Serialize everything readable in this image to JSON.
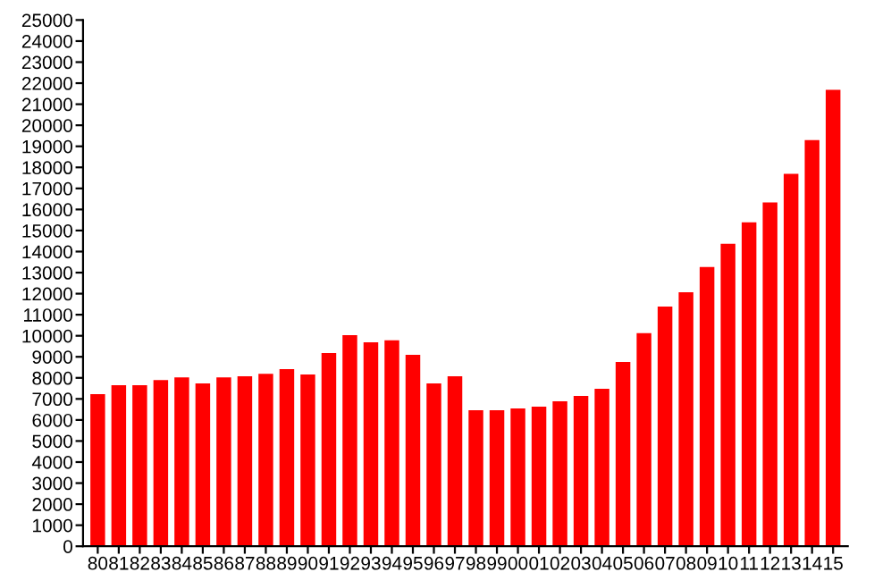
{
  "chart_data": {
    "type": "bar",
    "categories": [
      "80",
      "81",
      "82",
      "83",
      "84",
      "85",
      "86",
      "87",
      "88",
      "89",
      "90",
      "91",
      "92",
      "93",
      "94",
      "95",
      "96",
      "97",
      "98",
      "99",
      "00",
      "01",
      "02",
      "03",
      "04",
      "05",
      "06",
      "07",
      "08",
      "09",
      "10",
      "11",
      "12",
      "13",
      "14",
      "15"
    ],
    "values": [
      7230,
      7650,
      7650,
      7900,
      8020,
      7740,
      8020,
      8080,
      8190,
      8420,
      8160,
      9180,
      10030,
      9690,
      9780,
      9100,
      7740,
      8080,
      6460,
      6460,
      6550,
      6630,
      6890,
      7140,
      7480,
      8760,
      10120,
      11390,
      12070,
      13270,
      14370,
      15390,
      16330,
      17690,
      19300,
      21680
    ],
    "color": "#ff0000",
    "ylim": [
      0,
      25000
    ],
    "yticks": [
      0,
      1000,
      2000,
      3000,
      4000,
      5000,
      6000,
      7000,
      8000,
      9000,
      10000,
      11000,
      12000,
      13000,
      14000,
      15000,
      16000,
      17000,
      18000,
      19000,
      20000,
      21000,
      22000,
      23000,
      24000,
      25000
    ],
    "grid": false,
    "legend": false
  }
}
